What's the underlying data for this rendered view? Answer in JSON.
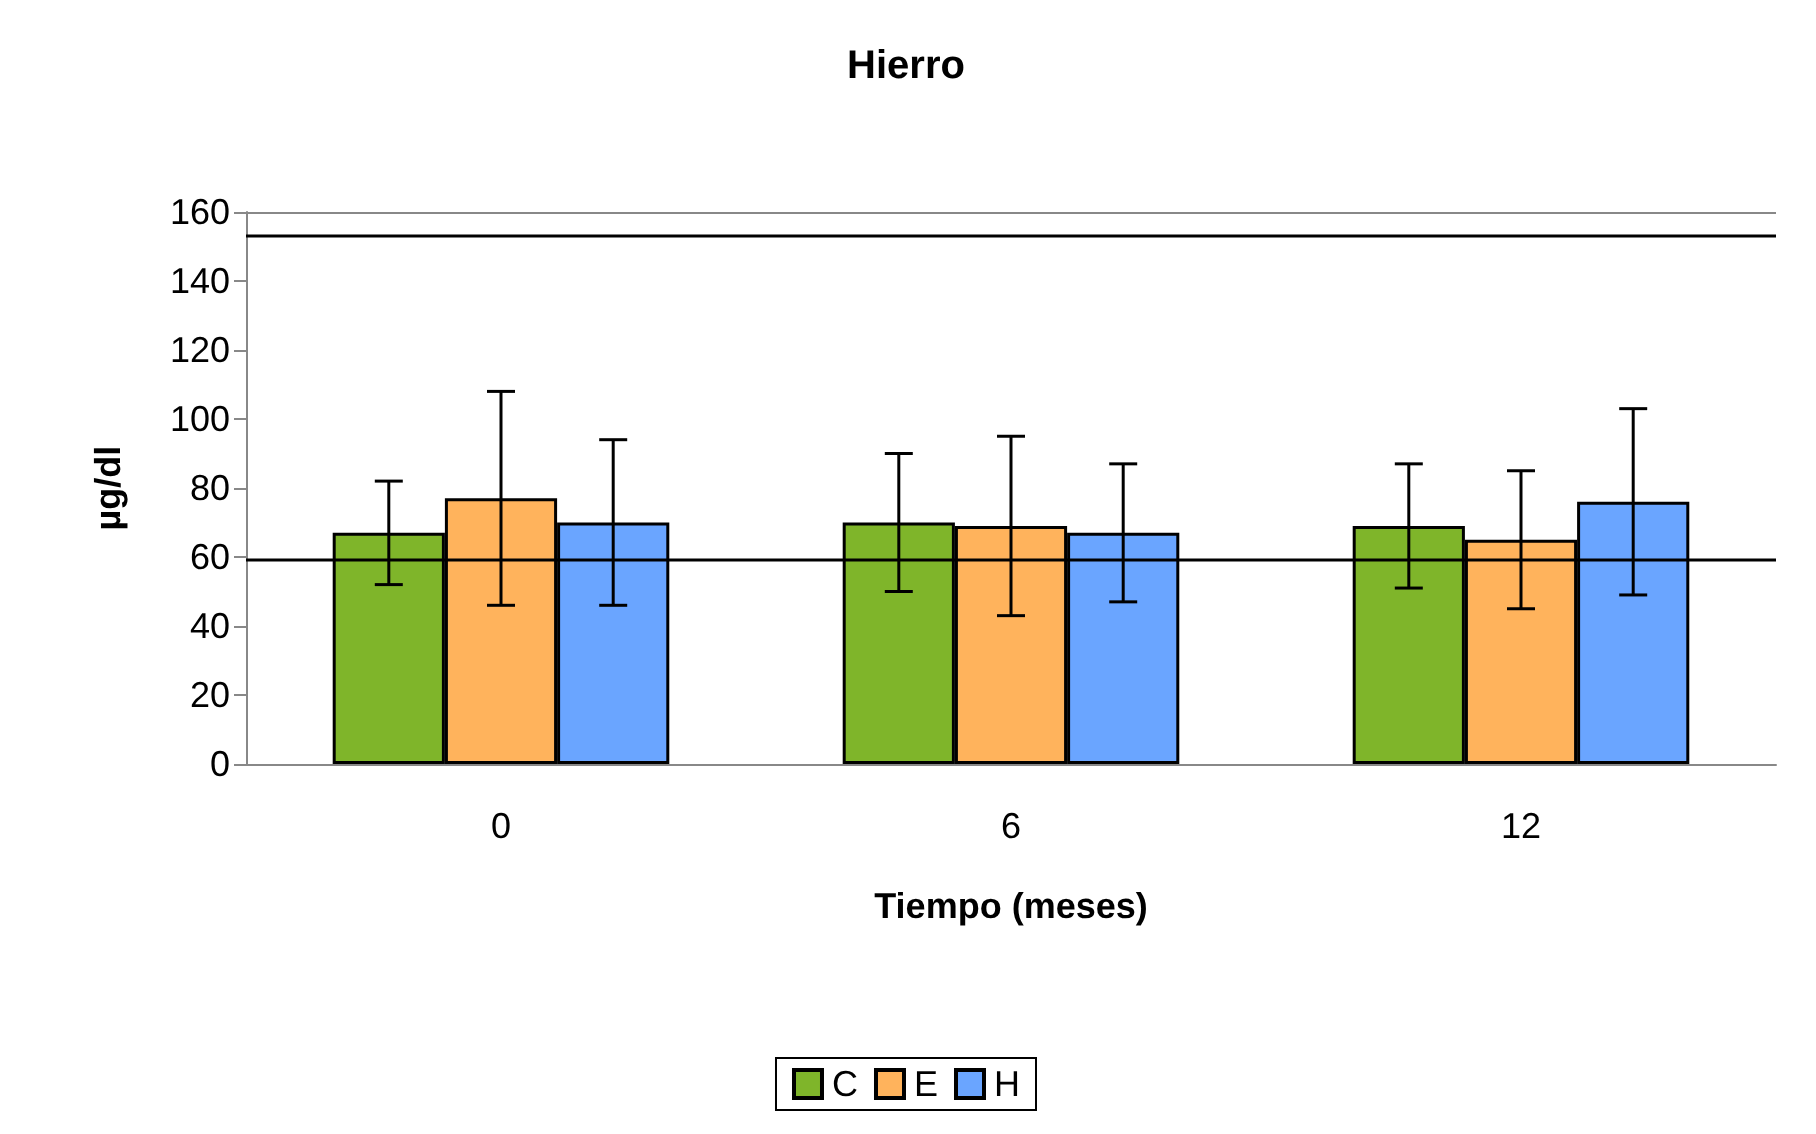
{
  "chart_data": {
    "type": "bar",
    "title": "Hierro",
    "xlabel": "Tiempo (meses)",
    "ylabel": "µg/dl",
    "categories": [
      "0",
      "6",
      "12"
    ],
    "series": [
      {
        "name": "C",
        "color": "#7fb52a",
        "values": [
          67,
          70,
          69
        ],
        "errors": [
          15,
          20,
          18
        ]
      },
      {
        "name": "E",
        "color": "#ffb35c",
        "values": [
          77,
          69,
          65
        ],
        "errors": [
          31,
          26,
          20
        ]
      },
      {
        "name": "H",
        "color": "#6aa5ff",
        "values": [
          70,
          67,
          76
        ],
        "errors": [
          24,
          20,
          27
        ]
      }
    ],
    "ylim": [
      0,
      160
    ],
    "yticks": [
      0,
      20,
      40,
      60,
      80,
      100,
      120,
      140,
      160
    ],
    "ref_lines": [
      {
        "axis": "y",
        "value": 153
      },
      {
        "axis": "y",
        "value": 59
      }
    ],
    "legend": "bottom",
    "grid": false
  }
}
